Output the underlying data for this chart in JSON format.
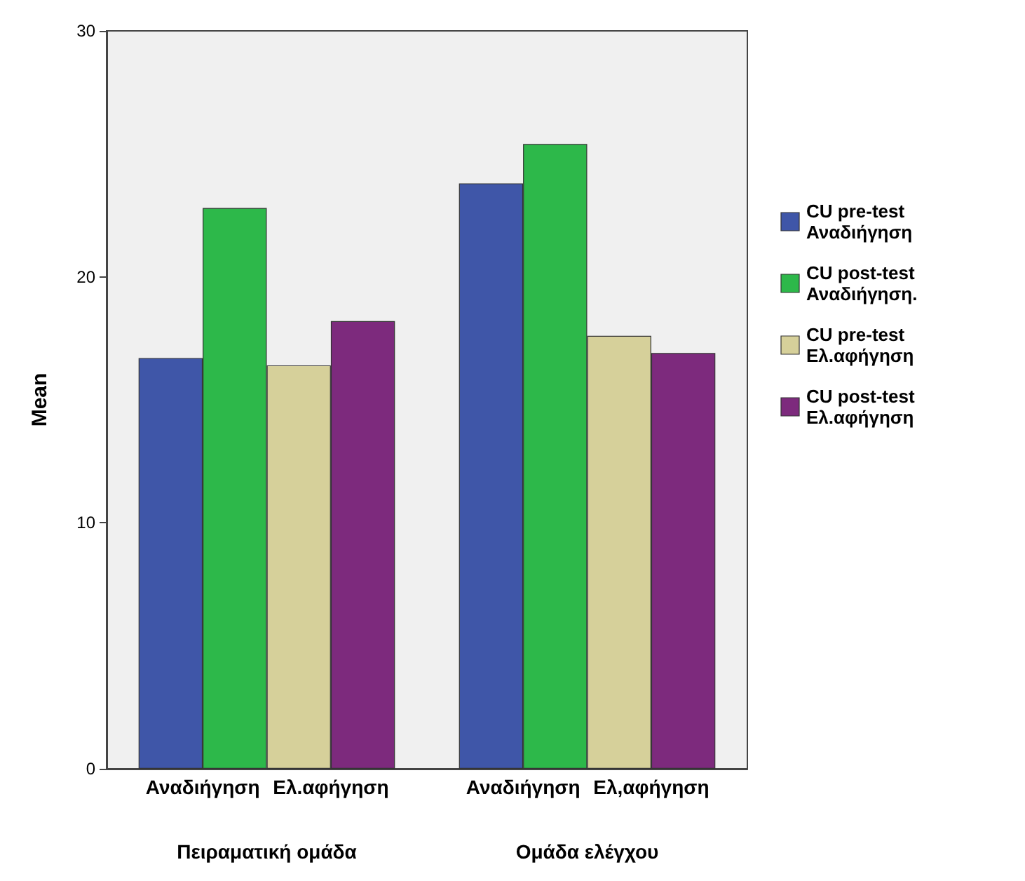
{
  "chart_data": {
    "type": "bar",
    "ylabel": "Mean",
    "categories": [
      "Πειραματική ομάδα",
      "Ομάδα ελέγχου"
    ],
    "series": [
      {
        "name": "CU pre-test Αναδιήγηση",
        "color": "#3f56a8",
        "values": [
          16.7,
          23.8
        ]
      },
      {
        "name": "CU post-test Αναδιήγηση.",
        "color": "#2db84a",
        "values": [
          22.8,
          25.4
        ]
      },
      {
        "name": "CU pre-test Ελ.αφήγηση",
        "color": "#d6d09a",
        "values": [
          16.4,
          17.6
        ]
      },
      {
        "name": "CU post-test Ελ.αφήγηση",
        "color": "#7d2a7d",
        "values": [
          18.2,
          16.9
        ]
      }
    ],
    "annotations": [
      "Αναδιήγηση",
      "Ελ.αφήγηση",
      "Αναδιήγηση",
      "Ελ,αφήγηση"
    ],
    "ylim": [
      0,
      30
    ],
    "yticks": [
      0,
      10,
      20,
      30
    ],
    "grid": false,
    "legend": "right"
  }
}
